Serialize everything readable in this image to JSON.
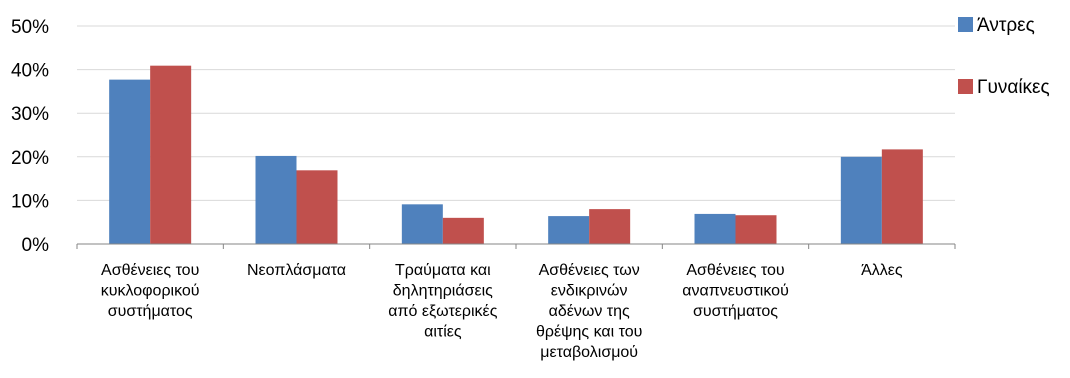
{
  "chart_data": {
    "type": "bar",
    "categories": [
      [
        "Ασθένειες του",
        "κυκλοφορικού",
        "συστήματος"
      ],
      [
        "Νεοπλάσματα"
      ],
      [
        "Τραύματα και",
        "δηλητηριάσεις",
        "από εξωτερικές",
        "αιτίες"
      ],
      [
        "Ασθένειες των",
        "ενδικρινών",
        "αδένων της",
        "θρέψης και του",
        "μεταβολισμού"
      ],
      [
        "Ασθένειες του",
        "αναπνευστικού",
        "συστήματος"
      ],
      [
        "Άλλες"
      ]
    ],
    "series": [
      {
        "name": "Άντρες",
        "color": "#4f81bd",
        "values": [
          37.7,
          20.2,
          9.1,
          6.4,
          6.9,
          20.0
        ]
      },
      {
        "name": "Γυναίκες",
        "color": "#c0504d",
        "values": [
          40.9,
          16.9,
          6.0,
          8.0,
          6.6,
          21.7
        ]
      }
    ],
    "ylim": [
      0,
      50
    ],
    "yticks": [
      "0%",
      "10%",
      "20%",
      "30%",
      "40%",
      "50%"
    ],
    "ytick_values": [
      0,
      10,
      20,
      30,
      40,
      50
    ],
    "grid": true,
    "legend_position": "right",
    "title": "",
    "xlabel": "",
    "ylabel": ""
  }
}
